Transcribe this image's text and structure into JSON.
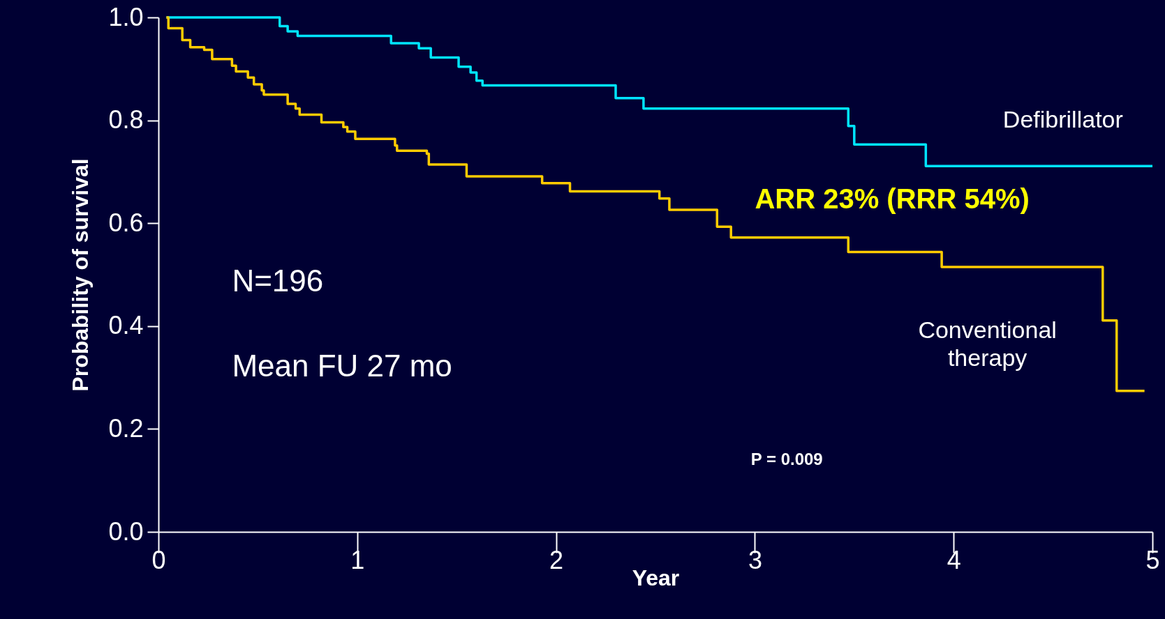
{
  "chart_data": {
    "type": "step",
    "xlabel": "Year",
    "ylabel": "Probability of survival",
    "xlim": [
      0,
      5
    ],
    "xticks": [
      0,
      1,
      2,
      3,
      4,
      5
    ],
    "ylim": [
      0,
      1
    ],
    "yticks": [
      {
        "value": 0,
        "label": "0.0"
      },
      {
        "value": 0.2,
        "label": "0.2"
      },
      {
        "value": 0.4,
        "label": "0.4"
      },
      {
        "value": 0.6,
        "label": "0.6"
      },
      {
        "value": 0.8,
        "label": "0.8"
      },
      {
        "value": 1,
        "label": "1.0"
      }
    ],
    "grid": false,
    "legend": false,
    "marker": "none",
    "line_style": "solid",
    "series": [
      {
        "name": "Defibrillator",
        "color": "#00e5ff",
        "x": [
          0.04,
          0.61,
          0.65,
          0.7,
          1.17,
          1.31,
          1.37,
          1.51,
          1.57,
          1.6,
          1.63,
          2.3,
          2.44,
          3.47,
          3.5,
          3.86,
          5.0
        ],
        "values": [
          1.0,
          0.983,
          0.973,
          0.964,
          0.95,
          0.94,
          0.922,
          0.904,
          0.893,
          0.877,
          0.868,
          0.843,
          0.823,
          0.789,
          0.753,
          0.711,
          0.711
        ]
      },
      {
        "name": "Conventional therapy",
        "color": "#ffcc00",
        "x": [
          0.04,
          0.05,
          0.12,
          0.16,
          0.23,
          0.27,
          0.37,
          0.39,
          0.45,
          0.48,
          0.52,
          0.53,
          0.65,
          0.69,
          0.71,
          0.82,
          0.93,
          0.95,
          0.99,
          1.19,
          1.2,
          1.35,
          1.36,
          1.55,
          1.93,
          2.07,
          2.52,
          2.57,
          2.81,
          2.88,
          3.47,
          3.94,
          4.75,
          4.82,
          4.96
        ],
        "values": [
          1.0,
          0.979,
          0.956,
          0.942,
          0.937,
          0.919,
          0.906,
          0.895,
          0.883,
          0.87,
          0.858,
          0.85,
          0.832,
          0.823,
          0.811,
          0.796,
          0.787,
          0.778,
          0.764,
          0.751,
          0.741,
          0.735,
          0.714,
          0.691,
          0.678,
          0.662,
          0.648,
          0.626,
          0.593,
          0.572,
          0.544,
          0.515,
          0.411,
          0.274,
          0.274
        ]
      }
    ],
    "annotations": [
      "N=196",
      "Mean FU 27 mo",
      "ARR 23% (RRR 54%)",
      "P = 0.009"
    ]
  }
}
